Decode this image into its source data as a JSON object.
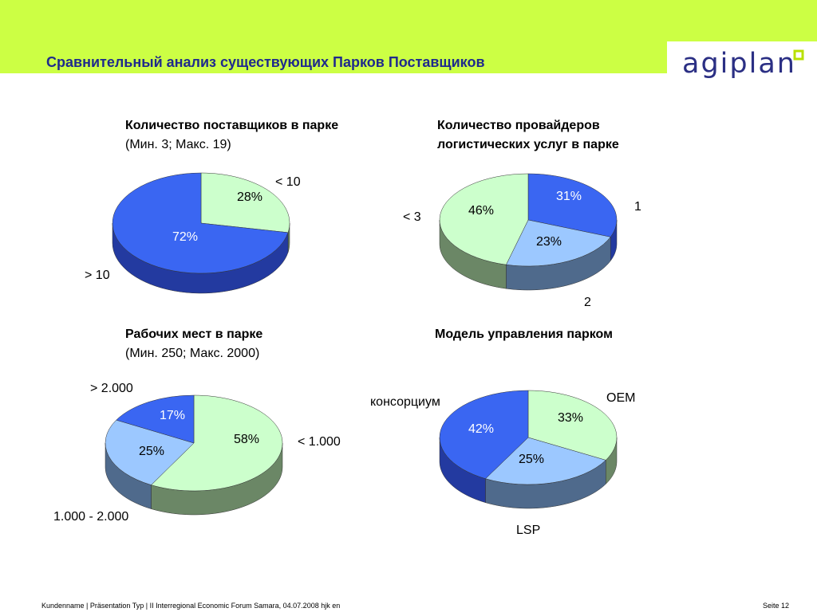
{
  "title": "Сравнительный анализ существующих Парков Поставщиков",
  "logo": {
    "text": "agiplan",
    "color": "#2b2f84",
    "mark_color": "#b8e000"
  },
  "colors": {
    "top_bar": "#ccff44",
    "green_face": "#ccffcc",
    "green_side": "#6b8766",
    "blue_face": "#3a66f2",
    "blue_side": "#233aa0",
    "light_face": "#9cc8ff",
    "light_side": "#4f6a8c"
  },
  "chart_data": [
    {
      "type": "pie",
      "title": "Количество поставщиков в парке",
      "subtitle": "(Мин. 3; Макс. 19)",
      "slices": [
        {
          "label": "< 10",
          "value": 28,
          "text": "28%",
          "color": "green"
        },
        {
          "label": "> 10",
          "value": 72,
          "text": "72%",
          "color": "blue"
        }
      ]
    },
    {
      "type": "pie",
      "title": "Количество провайдеров логистических услуг в парке",
      "subtitle": "",
      "slices": [
        {
          "label": "1",
          "value": 31,
          "text": "31%",
          "color": "blue"
        },
        {
          "label": "2",
          "value": 23,
          "text": "23%",
          "color": "light"
        },
        {
          "label": "< 3",
          "value": 46,
          "text": "46%",
          "color": "green"
        }
      ]
    },
    {
      "type": "pie",
      "title": "Рабочих мест в парке",
      "subtitle": "(Мин. 250; Макс. 2000)",
      "slices": [
        {
          "label": "< 1.000",
          "value": 58,
          "text": "58%",
          "color": "green"
        },
        {
          "label": "1.000 - 2.000",
          "value": 25,
          "text": "25%",
          "color": "light"
        },
        {
          "label": "> 2.000",
          "value": 17,
          "text": "17%",
          "color": "blue"
        }
      ]
    },
    {
      "type": "pie",
      "title": "Модель управления парком",
      "subtitle": "",
      "slices": [
        {
          "label": "OEM",
          "value": 33,
          "text": "33%",
          "color": "green"
        },
        {
          "label": "LSP",
          "value": 25,
          "text": "25%",
          "color": "light"
        },
        {
          "label": "консорциум",
          "value": 42,
          "text": "42%",
          "color": "blue"
        }
      ]
    }
  ],
  "footer": {
    "left": "Kundenname  |  Präsentation Typ  |  II Interregional Economic Forum Samara, 04.07.2008 hjk en",
    "right": "Seite 12"
  }
}
